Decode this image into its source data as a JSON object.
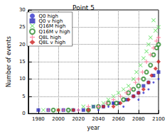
{
  "chart_data": {
    "type": "scatter",
    "title": "Point 5",
    "x_label": "year",
    "y_label": "Number of events",
    "xlim": [
      1970,
      2100
    ],
    "xticks": [
      1980,
      2000,
      2020,
      2040,
      2060,
      2080,
      2100
    ],
    "ylim": [
      0,
      30
    ],
    "yticks": [
      0,
      5,
      10,
      15,
      20,
      25,
      30
    ],
    "grid": true,
    "legend": "upper left",
    "series": [
      {
        "name": "Q0 high",
        "color": "#3333cc",
        "marker": "point",
        "x": [
          2000,
          2010,
          2020,
          2030,
          2035,
          2040,
          2045,
          2050,
          2055,
          2060,
          2065,
          2070,
          2075,
          2080,
          2085,
          2090,
          2095,
          2100
        ],
        "values": [
          1,
          1,
          1,
          1,
          2,
          1,
          2,
          2,
          3,
          3,
          2,
          4,
          5,
          4,
          6,
          7,
          9,
          10
        ]
      },
      {
        "name": "Q0 v high",
        "color": "#2a2ab8",
        "marker": "square",
        "x": [
          1980,
          1990,
          2005,
          2015,
          2025,
          2035,
          2045,
          2055,
          2060,
          2068,
          2075,
          2080,
          2085,
          2090,
          2095,
          2100
        ],
        "values": [
          1,
          1,
          1,
          1,
          1,
          2,
          2,
          3,
          3,
          4,
          5,
          6,
          8,
          9,
          11,
          12
        ]
      },
      {
        "name": "Q16M high",
        "color": "#55dd55",
        "marker": "x",
        "x": [
          1985,
          2000,
          2012,
          2025,
          2035,
          2045,
          2050,
          2055,
          2060,
          2065,
          2070,
          2075,
          2078,
          2082,
          2085,
          2088,
          2090,
          2092,
          2095,
          2097,
          2100
        ],
        "values": [
          1,
          1,
          1,
          2,
          2,
          3,
          4,
          5,
          6,
          7,
          8,
          10,
          12,
          14,
          16,
          18,
          20,
          22,
          27,
          24,
          25
        ]
      },
      {
        "name": "Q16M v high",
        "color": "#2e8b2e",
        "marker": "circle",
        "x": [
          1995,
          2010,
          2030,
          2040,
          2050,
          2058,
          2065,
          2070,
          2075,
          2080,
          2085,
          2088,
          2092,
          2095,
          2098,
          2100
        ],
        "values": [
          1,
          1,
          1,
          2,
          3,
          3,
          4,
          6,
          7,
          8,
          10,
          12,
          14,
          17,
          19,
          20
        ]
      },
      {
        "name": "Q8L high",
        "color": "#ff7799",
        "marker": "plus",
        "x": [
          1990,
          2005,
          2020,
          2030,
          2040,
          2048,
          2055,
          2062,
          2068,
          2072,
          2077,
          2080,
          2084,
          2088,
          2092,
          2095,
          2098,
          2100
        ],
        "values": [
          1,
          1,
          1,
          2,
          2,
          3,
          4,
          5,
          6,
          7,
          9,
          10,
          12,
          15,
          17,
          19,
          21,
          22
        ]
      },
      {
        "name": "Q8L v high",
        "color": "#cc2222",
        "marker": "diamond",
        "x": [
          2000,
          2015,
          2030,
          2045,
          2055,
          2062,
          2070,
          2075,
          2080,
          2085,
          2090,
          2093,
          2097,
          2100
        ],
        "values": [
          1,
          1,
          1,
          2,
          2,
          3,
          4,
          5,
          6,
          7,
          9,
          11,
          13,
          15
        ]
      }
    ]
  }
}
